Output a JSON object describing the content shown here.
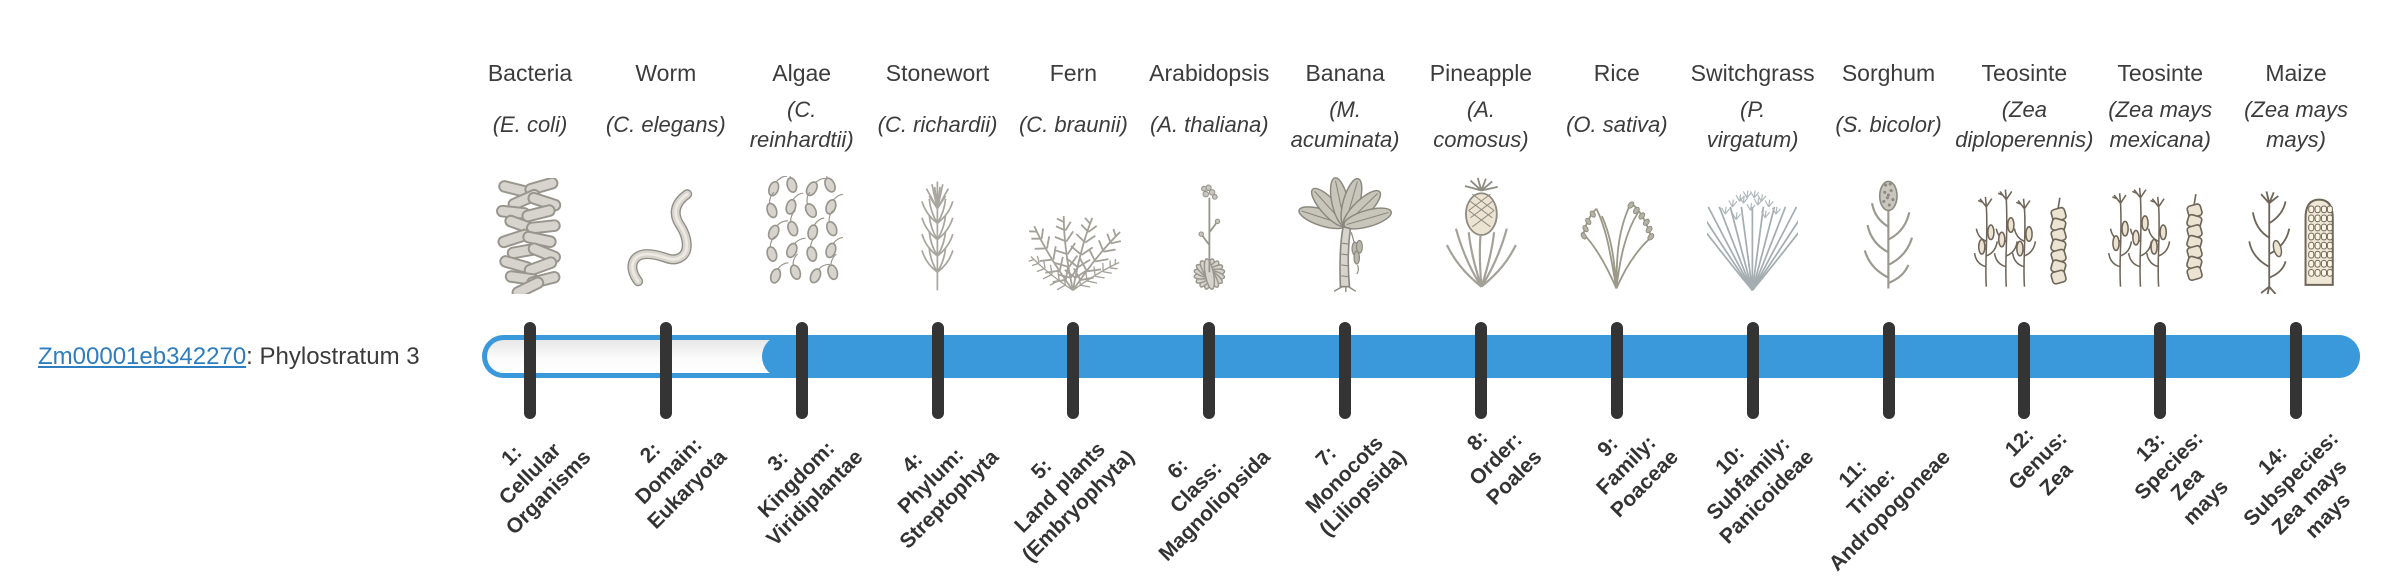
{
  "gene": {
    "id": "Zm00001eb342270",
    "suffix": ": Phylostratum 3",
    "phylostratum": 3
  },
  "bar": {
    "total_strata": 14,
    "filled_from_stratum": 3
  },
  "colors": {
    "bar_fill": "#3999db",
    "tick": "#343434",
    "link": "#2e7dbf",
    "text": "#3c3c3c"
  },
  "columns": [
    {
      "stratum": "1",
      "common_name": "Bacteria",
      "scientific_name_lines": [
        "(E. coli)"
      ],
      "icon": "bacteria-icon",
      "stratum_label_lines": [
        "1:",
        "Cellular",
        "Organisms"
      ]
    },
    {
      "stratum": "2",
      "common_name": "Worm",
      "scientific_name_lines": [
        "(C. elegans)"
      ],
      "icon": "worm-icon",
      "stratum_label_lines": [
        "2:",
        "Domain:",
        "Eukaryota"
      ]
    },
    {
      "stratum": "3",
      "common_name": "Algae",
      "scientific_name_lines": [
        "(C.",
        "reinhardtii)"
      ],
      "icon": "algae-icon",
      "stratum_label_lines": [
        "3:",
        "Kingdom:",
        "Viridiplantae"
      ]
    },
    {
      "stratum": "4",
      "common_name": "Stonewort",
      "scientific_name_lines": [
        "(C. richardii)"
      ],
      "icon": "stonewort-icon",
      "stratum_label_lines": [
        "4:",
        "Phylum:",
        "Streptophyta"
      ]
    },
    {
      "stratum": "5",
      "common_name": "Fern",
      "scientific_name_lines": [
        "(C. braunii)"
      ],
      "icon": "fern-icon",
      "stratum_label_lines": [
        "5:",
        "Land plants",
        "(Embryophyta)"
      ]
    },
    {
      "stratum": "6",
      "common_name": "Arabidopsis",
      "scientific_name_lines": [
        "(A. thaliana)"
      ],
      "icon": "arabidopsis-icon",
      "stratum_label_lines": [
        "6:",
        "Class:",
        "Magnoliopsida"
      ]
    },
    {
      "stratum": "7",
      "common_name": "Banana",
      "scientific_name_lines": [
        "(M.",
        "acuminata)"
      ],
      "icon": "banana-icon",
      "stratum_label_lines": [
        "7:",
        "Monocots",
        "(Liliopsida)"
      ]
    },
    {
      "stratum": "8",
      "common_name": "Pineapple",
      "scientific_name_lines": [
        "(A.",
        "comosus)"
      ],
      "icon": "pineapple-icon",
      "stratum_label_lines": [
        "8:",
        "Order:",
        "Poales"
      ]
    },
    {
      "stratum": "9",
      "common_name": "Rice",
      "scientific_name_lines": [
        "(O. sativa)"
      ],
      "icon": "rice-icon",
      "stratum_label_lines": [
        "9:",
        "Family:",
        "Poaceae"
      ]
    },
    {
      "stratum": "10",
      "common_name": "Switchgrass",
      "scientific_name_lines": [
        "(P.",
        "virgatum)"
      ],
      "icon": "switchgrass-icon",
      "stratum_label_lines": [
        "10:",
        "Subfamily:",
        "Panicoideae"
      ]
    },
    {
      "stratum": "11",
      "common_name": "Sorghum",
      "scientific_name_lines": [
        "(S. bicolor)"
      ],
      "icon": "sorghum-icon",
      "stratum_label_lines": [
        "11:",
        "Tribe:",
        "Andropogoneae"
      ]
    },
    {
      "stratum": "12",
      "common_name": "Teosinte",
      "scientific_name_lines": [
        "(Zea",
        "diploperennis)"
      ],
      "icon": "teosinte-diploperennis-icon",
      "stratum_label_lines": [
        "12:",
        "Genus:",
        "Zea"
      ]
    },
    {
      "stratum": "13",
      "common_name": "Teosinte",
      "scientific_name_lines": [
        "(Zea mays",
        "mexicana)"
      ],
      "icon": "teosinte-mexicana-icon",
      "stratum_label_lines": [
        "13:",
        "Species:",
        "Zea",
        "mays"
      ]
    },
    {
      "stratum": "14",
      "common_name": "Maize",
      "scientific_name_lines": [
        "(Zea mays",
        "mays)"
      ],
      "icon": "maize-icon",
      "stratum_label_lines": [
        "14:",
        "Subspecies:",
        "Zea mays",
        "mays"
      ]
    }
  ]
}
